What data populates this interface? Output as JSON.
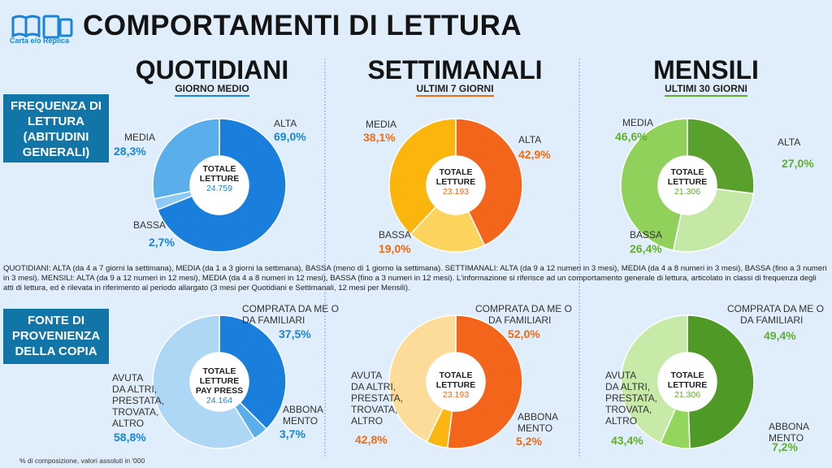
{
  "header": {
    "title": "COMPORTAMENTI DI LETTURA",
    "logo_text": "Carta e/o Replica"
  },
  "sections": [
    {
      "title": "QUOTIDIANI",
      "subtitle": "GIORNO MEDIO",
      "color": "#1a84d6"
    },
    {
      "title": "SETTIMANALI",
      "subtitle": "ULTIMI 7 GIORNI",
      "color": "#f06a12"
    },
    {
      "title": "MENSILI",
      "subtitle": "ULTIMI 30 GIORNI",
      "color": "#5fae2c"
    }
  ],
  "row_labels": {
    "frequenza": "FREQUENZA DI LETTURA (ABITUDINI GENERALI)",
    "fonte": "FONTE DI PROVENIENZA DELLA COPIA"
  },
  "labels": {
    "alta": "ALTA",
    "media": "MEDIA",
    "bassa": "BASSA",
    "comprata_1": "COMPRATA DA ME O",
    "comprata_2": "DA FAMILIARI",
    "abbona_1": "ABBONA",
    "abbona_2": "MENTO",
    "avuta_lines": [
      "AVUTA",
      "DA ALTRI,",
      "PRESTATA,",
      "TROVATA,",
      "ALTRO"
    ],
    "totale": "TOTALE",
    "letture": "LETTURE",
    "pay_press": "PAY PRESS"
  },
  "note": "QUOTIDIANI: ALTA (da 4 a 7 giorni la settimana), MEDIA (da 1 a 3 giorni la settimana), BASSA (meno di 1 giorno la settimana).  SETTIMANALI: ALTA (da 9 a 12 numeri in 3 mesi), MEDIA (da 4 a 8 numeri in 3 mesi), BASSA (fino a 3 numeri in 3 mesi). MENSILI: ALTA (da 9 a 12 numeri in 12 mesi), MEDIA (da 4 a 8 numeri in 12 mesi), BASSA (fino a 3 numeri in 12 mesi). L'informazione  si riferisce ad un comportamento generale di lettura, articolato in classi di frequenza degli atti di lettura, ed è rilevata in riferimento al periodo allargato (3 mesi per Quotidiani e Settimanali, 12 mesi per Mensili).",
  "footnote": "% di composizione, valori assoluti in '000",
  "chart_data": [
    {
      "type": "pie",
      "id": "q-freq",
      "title": "QUOTIDIANI - FREQUENZA DI LETTURA",
      "categories": [
        "ALTA",
        "BASSA",
        "MEDIA"
      ],
      "values": [
        69.0,
        2.7,
        28.3
      ],
      "value_labels": [
        "69,0%",
        "2,7%",
        "28,3%"
      ],
      "colors": [
        "#1a7fdc",
        "#8cc9f5",
        "#5aaeea"
      ],
      "total_label": "24.759"
    },
    {
      "type": "pie",
      "id": "s-freq",
      "title": "SETTIMANALI - FREQUENZA DI LETTURA",
      "categories": [
        "ALTA",
        "BASSA",
        "MEDIA"
      ],
      "values": [
        42.9,
        19.0,
        38.1
      ],
      "value_labels": [
        "42,9%",
        "19,0%",
        "38,1%"
      ],
      "colors": [
        "#f2651a",
        "#fcd35c",
        "#fab60d"
      ],
      "total_label": "23.193"
    },
    {
      "type": "pie",
      "id": "m-freq",
      "title": "MENSILI - FREQUENZA DI LETTURA",
      "categories": [
        "ALTA",
        "BASSA",
        "MEDIA"
      ],
      "values": [
        27.0,
        26.4,
        46.6
      ],
      "value_labels": [
        "27,0%",
        "26,4%",
        "46,6%"
      ],
      "colors": [
        "#5aa02c",
        "#c5e8a6",
        "#8fd15a"
      ],
      "total_label": "21.306"
    },
    {
      "type": "pie",
      "id": "q-fonte",
      "title": "QUOTIDIANI - FONTE DI PROVENIENZA DELLA COPIA",
      "categories": [
        "COMPRATA DA ME O DA FAMILIARI",
        "ABBONAMENTO",
        "AVUTA DA ALTRI, PRESTATA, TROVATA, ALTRO"
      ],
      "values": [
        37.5,
        3.7,
        58.8
      ],
      "value_labels": [
        "37,5%",
        "3,7%",
        "58,8%"
      ],
      "colors": [
        "#1a7fdc",
        "#5aaeea",
        "#aed7f6"
      ],
      "total_label": "24.164"
    },
    {
      "type": "pie",
      "id": "s-fonte",
      "title": "SETTIMANALI - FONTE DI PROVENIENZA DELLA COPIA",
      "categories": [
        "COMPRATA DA ME O DA FAMILIARI",
        "ABBONAMENTO",
        "AVUTA DA ALTRI, PRESTATA, TROVATA, ALTRO"
      ],
      "values": [
        52.0,
        5.2,
        42.8
      ],
      "value_labels": [
        "52,0%",
        "5,2%",
        "42,8%"
      ],
      "colors": [
        "#f2651a",
        "#fbb611",
        "#fddc9a"
      ],
      "total_label": "23.193"
    },
    {
      "type": "pie",
      "id": "m-fonte",
      "title": "MENSILI - FONTE DI PROVENIENZA DELLA COPIA",
      "categories": [
        "COMPRATA DA ME O DA FAMILIARI",
        "ABBONAMENTO",
        "AVUTA DA ALTRI, PRESTATA, TROVATA, ALTRO"
      ],
      "values": [
        49.4,
        7.2,
        43.4
      ],
      "value_labels": [
        "49,4%",
        "7,2%",
        "43,4%"
      ],
      "colors": [
        "#4f9a26",
        "#93d65e",
        "#c7eaa9"
      ],
      "total_label": "21.306"
    }
  ]
}
